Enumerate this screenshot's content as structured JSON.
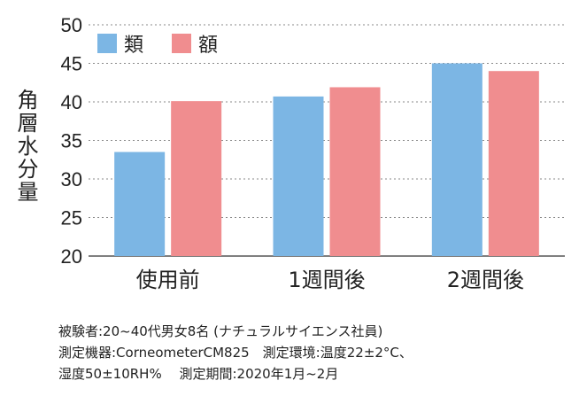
{
  "chart_data": {
    "type": "bar",
    "ylabel": "角層水分量",
    "categories": [
      "使用前",
      "1週間後",
      "2週間後"
    ],
    "series": [
      {
        "name": "類",
        "color": "#7cb6e4",
        "values": [
          33.5,
          40.7,
          45.0
        ]
      },
      {
        "name": "額",
        "color": "#f08d8f",
        "values": [
          40.1,
          41.9,
          44.0
        ]
      }
    ],
    "ylim": [
      20,
      50
    ],
    "yticks": [
      "20",
      "25",
      "30",
      "35",
      "40",
      "45",
      "50"
    ],
    "grid": true,
    "legend": "top-left"
  },
  "notes": [
    "被験者:20~40代男女8名 (ナチュラルサイエンス社員)",
    "測定機器:CorneometerCM825　測定環境:温度22±2°C、",
    "湿度50±10RH%　 測定期間:2020年1月~2月"
  ]
}
